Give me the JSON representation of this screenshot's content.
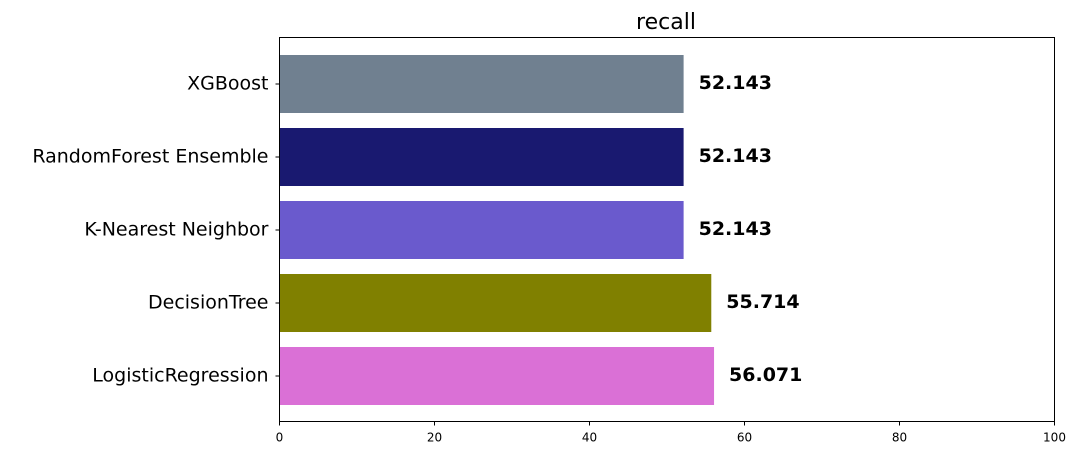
{
  "chart_data": {
    "type": "bar",
    "orientation": "horizontal",
    "title": "recall",
    "xlabel": "",
    "ylabel": "",
    "categories": [
      "XGBoost",
      "RandomForest Ensemble",
      "K-Nearest Neighbor",
      "DecisionTree",
      "LogisticRegression"
    ],
    "values": [
      52.143,
      52.143,
      52.143,
      55.714,
      56.071
    ],
    "data_labels": [
      "52.143",
      "52.143",
      "52.143",
      "55.714",
      "56.071"
    ],
    "colors": [
      "#708090",
      "#191970",
      "#6a5acd",
      "#808000",
      "#da70d6"
    ],
    "xlim": [
      0,
      100
    ],
    "x_ticks": [
      0,
      20,
      40,
      60,
      80,
      100
    ],
    "grid": false,
    "legend": "none"
  }
}
